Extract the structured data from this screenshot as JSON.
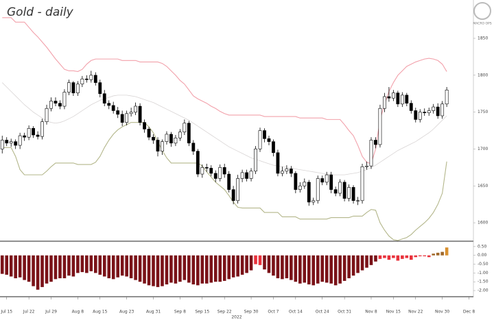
{
  "chart_data": [
    {
      "type": "candlestick",
      "title": "Gold - daily",
      "logo": "MACRO OPS",
      "xlim": [
        -0.5,
        106
      ],
      "ylim": [
        1575,
        1902
      ],
      "yticks": [
        1600,
        1650,
        1700,
        1750,
        1800,
        1850
      ],
      "xticks": [
        {
          "value": 1,
          "label": "Jul 15"
        },
        {
          "value": 6,
          "label": "Jul 22"
        },
        {
          "value": 11,
          "label": "Jul 29"
        },
        {
          "value": 17,
          "label": "Aug 8"
        },
        {
          "value": 22,
          "label": "Aug 15"
        },
        {
          "value": 28,
          "label": "Aug 23"
        },
        {
          "value": 34,
          "label": "Aug 31"
        },
        {
          "value": 40,
          "label": "Sep 8"
        },
        {
          "value": 45,
          "label": "Sep 15"
        },
        {
          "value": 50,
          "label": "Sep 22"
        },
        {
          "value": 56,
          "label": "Sep 30"
        },
        {
          "value": 61,
          "label": "Oct 7"
        },
        {
          "value": 66,
          "label": "Oct 14"
        },
        {
          "value": 72,
          "label": "Oct 24"
        },
        {
          "value": 77,
          "label": "Oct 31"
        },
        {
          "value": 83,
          "label": "Nov 8"
        },
        {
          "value": 88,
          "label": "Nov 15"
        },
        {
          "value": 93,
          "label": "Nov 22"
        },
        {
          "value": 99,
          "label": "Nov 30"
        },
        {
          "value": 105,
          "label": "Dec 8"
        }
      ],
      "year_label": "2022",
      "open": [
        1700,
        1712,
        1708,
        1710,
        1705,
        1718,
        1716,
        1728,
        1719,
        1717,
        1737,
        1755,
        1765,
        1762,
        1758,
        1777,
        1790,
        1776,
        1788,
        1795,
        1794,
        1800,
        1790,
        1775,
        1762,
        1759,
        1752,
        1747,
        1736,
        1748,
        1750,
        1758,
        1736,
        1727,
        1716,
        1712,
        1697,
        1710,
        1720,
        1708,
        1715,
        1723,
        1735,
        1708,
        1697,
        1666,
        1675,
        1674,
        1667,
        1660,
        1675,
        1666,
        1645,
        1630,
        1660,
        1668,
        1660,
        1670,
        1700,
        1725,
        1714,
        1710,
        1695,
        1667,
        1670,
        1673,
        1667,
        1645,
        1650,
        1655,
        1628,
        1630,
        1660,
        1655,
        1665,
        1645,
        1640,
        1655,
        1633,
        1648,
        1630,
        1630,
        1676,
        1677,
        1712,
        1706,
        1755,
        1771,
        1769,
        1776,
        1761,
        1773,
        1762,
        1752,
        1740,
        1750,
        1749,
        1752,
        1757,
        1745,
        1761
      ],
      "high": [
        1718,
        1716,
        1714,
        1713,
        1722,
        1722,
        1732,
        1731,
        1724,
        1741,
        1760,
        1770,
        1770,
        1766,
        1781,
        1794,
        1792,
        1792,
        1799,
        1800,
        1806,
        1804,
        1794,
        1780,
        1766,
        1764,
        1757,
        1752,
        1752,
        1756,
        1763,
        1762,
        1740,
        1730,
        1720,
        1716,
        1713,
        1724,
        1723,
        1719,
        1727,
        1740,
        1738,
        1712,
        1700,
        1679,
        1680,
        1678,
        1671,
        1679,
        1680,
        1670,
        1650,
        1665,
        1672,
        1672,
        1674,
        1704,
        1729,
        1728,
        1718,
        1713,
        1699,
        1676,
        1678,
        1677,
        1670,
        1655,
        1660,
        1658,
        1634,
        1664,
        1664,
        1669,
        1669,
        1649,
        1659,
        1658,
        1652,
        1651,
        1635,
        1680,
        1683,
        1716,
        1716,
        1760,
        1776,
        1784,
        1780,
        1779,
        1777,
        1776,
        1766,
        1756,
        1754,
        1755,
        1756,
        1761,
        1762,
        1765,
        1784
      ],
      "low": [
        1694,
        1704,
        1703,
        1700,
        1700,
        1711,
        1712,
        1715,
        1713,
        1713,
        1733,
        1751,
        1758,
        1754,
        1754,
        1773,
        1772,
        1772,
        1784,
        1790,
        1790,
        1786,
        1770,
        1758,
        1754,
        1748,
        1742,
        1731,
        1732,
        1744,
        1746,
        1732,
        1722,
        1712,
        1707,
        1690,
        1692,
        1706,
        1703,
        1704,
        1711,
        1719,
        1704,
        1692,
        1662,
        1661,
        1669,
        1663,
        1655,
        1656,
        1661,
        1641,
        1625,
        1626,
        1655,
        1656,
        1656,
        1666,
        1696,
        1709,
        1705,
        1690,
        1663,
        1663,
        1666,
        1662,
        1640,
        1641,
        1646,
        1623,
        1624,
        1626,
        1651,
        1651,
        1640,
        1636,
        1636,
        1629,
        1629,
        1626,
        1624,
        1626,
        1672,
        1673,
        1701,
        1702,
        1750,
        1764,
        1765,
        1757,
        1757,
        1758,
        1748,
        1736,
        1736,
        1745,
        1745,
        1748,
        1741,
        1741,
        1757
      ],
      "close": [
        1712,
        1708,
        1710,
        1705,
        1718,
        1716,
        1728,
        1719,
        1717,
        1737,
        1755,
        1765,
        1762,
        1758,
        1777,
        1790,
        1776,
        1788,
        1795,
        1794,
        1800,
        1790,
        1775,
        1762,
        1759,
        1752,
        1747,
        1736,
        1748,
        1750,
        1758,
        1736,
        1727,
        1716,
        1712,
        1697,
        1710,
        1720,
        1708,
        1715,
        1723,
        1735,
        1708,
        1697,
        1666,
        1675,
        1674,
        1667,
        1660,
        1675,
        1666,
        1645,
        1630,
        1660,
        1668,
        1660,
        1670,
        1700,
        1725,
        1714,
        1710,
        1695,
        1667,
        1670,
        1673,
        1667,
        1645,
        1650,
        1655,
        1628,
        1630,
        1660,
        1655,
        1665,
        1645,
        1640,
        1655,
        1633,
        1648,
        1630,
        1630,
        1676,
        1677,
        1712,
        1706,
        1755,
        1771,
        1769,
        1776,
        1761,
        1773,
        1762,
        1752,
        1740,
        1750,
        1749,
        1752,
        1757,
        1745,
        1761,
        1780
      ],
      "up_color": "#ffffff",
      "down_color": "#000000",
      "lines": [
        {
          "color": "#f2a0aa",
          "values": [
            1878,
            1878,
            1878,
            1872,
            1872,
            1872,
            1865,
            1858,
            1852,
            1845,
            1838,
            1830,
            1822,
            1815,
            1808,
            1806,
            1806,
            1805,
            1808,
            1815,
            1820,
            1822,
            1822,
            1822,
            1822,
            1822,
            1822,
            1820,
            1820,
            1820,
            1820,
            1818,
            1818,
            1818,
            1818,
            1818,
            1816,
            1812,
            1806,
            1800,
            1793,
            1788,
            1780,
            1772,
            1768,
            1765,
            1762,
            1758,
            1755,
            1751,
            1748,
            1746,
            1746,
            1746,
            1746,
            1746,
            1746,
            1746,
            1746,
            1744,
            1744,
            1744,
            1744,
            1744,
            1744,
            1744,
            1744,
            1742,
            1742,
            1742,
            1742,
            1742,
            1742,
            1740,
            1740,
            1740,
            1740,
            1733,
            1725,
            1718,
            1705,
            1690,
            1682,
            1680,
            1700,
            1740,
            1760,
            1778,
            1790,
            1800,
            1806,
            1812,
            1815,
            1818,
            1820,
            1822,
            1823,
            1822,
            1820,
            1815,
            1805
          ]
        },
        {
          "color": "#b3b68a",
          "values": [
            1702,
            1702,
            1702,
            1690,
            1672,
            1665,
            1665,
            1665,
            1665,
            1665,
            1670,
            1676,
            1681,
            1681,
            1681,
            1681,
            1681,
            1679,
            1679,
            1679,
            1679,
            1682,
            1690,
            1702,
            1712,
            1720,
            1726,
            1730,
            1733,
            1736,
            1736,
            1736,
            1736,
            1730,
            1722,
            1710,
            1698,
            1688,
            1681,
            1681,
            1681,
            1681,
            1681,
            1681,
            1681,
            1677,
            1669,
            1662,
            1655,
            1650,
            1645,
            1637,
            1628,
            1621,
            1620,
            1620,
            1620,
            1620,
            1620,
            1614,
            1614,
            1614,
            1614,
            1608,
            1608,
            1608,
            1608,
            1605,
            1605,
            1605,
            1605,
            1605,
            1605,
            1605,
            1607,
            1607,
            1607,
            1607,
            1607,
            1609,
            1609,
            1609,
            1614,
            1618,
            1617,
            1600,
            1590,
            1582,
            1577,
            1576,
            1578,
            1580,
            1584,
            1590,
            1595,
            1600,
            1606,
            1614,
            1625,
            1640,
            1683
          ]
        },
        {
          "color": "#d8d4d4",
          "values": [
            1790,
            1784,
            1778,
            1772,
            1766,
            1760,
            1755,
            1750,
            1746,
            1742,
            1738,
            1736,
            1735,
            1736,
            1738,
            1741,
            1744,
            1748,
            1752,
            1756,
            1760,
            1763,
            1766,
            1768,
            1770,
            1772,
            1773,
            1773,
            1773,
            1772,
            1771,
            1769,
            1767,
            1765,
            1763,
            1760,
            1757,
            1754,
            1751,
            1748,
            1745,
            1742,
            1739,
            1735,
            1731,
            1727,
            1723,
            1719,
            1715,
            1711,
            1707,
            1703,
            1700,
            1697,
            1694,
            1691,
            1688,
            1686,
            1684,
            1682,
            1680,
            1678,
            1677,
            1676,
            1675,
            1674,
            1673,
            1672,
            1671,
            1670,
            1669,
            1668,
            1667,
            1666,
            1665,
            1665,
            1665,
            1665,
            1666,
            1667,
            1668,
            1670,
            1672,
            1675,
            1678,
            1682,
            1686,
            1690,
            1694,
            1698,
            1701,
            1704,
            1707,
            1710,
            1714,
            1718,
            1722,
            1727,
            1733,
            1739,
            1745
          ]
        }
      ]
    },
    {
      "type": "bar",
      "xlim": [
        -0.5,
        106
      ],
      "ylim": [
        -2.31,
        0.69
      ],
      "yticks": [
        {
          "value": 0.5,
          "label": "0.50"
        },
        {
          "value": 0,
          "label": "0.00"
        },
        {
          "value": -0.5,
          "label": "-0.50"
        },
        {
          "value": -1,
          "label": "-1.00"
        },
        {
          "value": -1.5,
          "label": "-1.50"
        },
        {
          "value": -2,
          "label": "-2.00"
        }
      ],
      "values": [
        -1.05,
        -1.1,
        -1.2,
        -1.3,
        -1.25,
        -1.4,
        -1.5,
        -1.75,
        -1.95,
        -1.8,
        -1.6,
        -1.5,
        -1.35,
        -1.3,
        -1.3,
        -1.15,
        -1.2,
        -1.0,
        -0.95,
        -1.0,
        -0.9,
        -1.0,
        -1.1,
        -1.2,
        -1.3,
        -1.35,
        -1.25,
        -1.15,
        -1.2,
        -1.3,
        -1.4,
        -1.5,
        -1.6,
        -1.7,
        -1.75,
        -1.8,
        -1.75,
        -1.65,
        -1.55,
        -1.6,
        -1.5,
        -1.4,
        -1.55,
        -1.65,
        -1.7,
        -1.6,
        -1.6,
        -1.55,
        -1.5,
        -1.5,
        -1.45,
        -1.35,
        -1.25,
        -1.2,
        -1.1,
        -1.0,
        -0.85,
        -0.5,
        -0.55,
        -0.8,
        -1.0,
        -1.15,
        -1.3,
        -1.35,
        -1.3,
        -1.4,
        -1.5,
        -1.6,
        -1.55,
        -1.65,
        -1.7,
        -1.6,
        -1.5,
        -1.55,
        -1.6,
        -1.7,
        -1.6,
        -1.45,
        -1.3,
        -1.15,
        -1.0,
        -0.85,
        -0.7,
        -0.55,
        -0.35,
        -0.2,
        -0.15,
        -0.25,
        -0.15,
        -0.3,
        -0.2,
        -0.15,
        -0.25,
        -0.1,
        -0.05,
        -0.05,
        -0.1,
        0.1,
        0.15,
        0.2,
        0.45
      ],
      "colors": [
        "#7a1218",
        "#7a1218",
        "#7a1218",
        "#7a1218",
        "#7a1218",
        "#7a1218",
        "#7a1218",
        "#7a1218",
        "#7a1218",
        "#7a1218",
        "#7a1218",
        "#7a1218",
        "#7a1218",
        "#7a1218",
        "#7a1218",
        "#7a1218",
        "#7a1218",
        "#7a1218",
        "#7a1218",
        "#7a1218",
        "#7a1218",
        "#7a1218",
        "#7a1218",
        "#7a1218",
        "#7a1218",
        "#7a1218",
        "#7a1218",
        "#7a1218",
        "#7a1218",
        "#7a1218",
        "#7a1218",
        "#7a1218",
        "#7a1218",
        "#7a1218",
        "#7a1218",
        "#7a1218",
        "#7a1218",
        "#7a1218",
        "#7a1218",
        "#7a1218",
        "#7a1218",
        "#7a1218",
        "#7a1218",
        "#7a1218",
        "#7a1218",
        "#7a1218",
        "#7a1218",
        "#7a1218",
        "#7a1218",
        "#7a1218",
        "#7a1218",
        "#7a1218",
        "#7a1218",
        "#7a1218",
        "#7a1218",
        "#7a1218",
        "#7a1218",
        "#e8323c",
        "#e8323c",
        "#7a1218",
        "#7a1218",
        "#7a1218",
        "#7a1218",
        "#7a1218",
        "#7a1218",
        "#7a1218",
        "#7a1218",
        "#7a1218",
        "#7a1218",
        "#7a1218",
        "#7a1218",
        "#7a1218",
        "#7a1218",
        "#7a1218",
        "#7a1218",
        "#7a1218",
        "#7a1218",
        "#7a1218",
        "#7a1218",
        "#7a1218",
        "#7a1218",
        "#7a1218",
        "#7a1218",
        "#7a1218",
        "#7a1218",
        "#e8323c",
        "#e8323c",
        "#e8323c",
        "#e8323c",
        "#e8323c",
        "#e8323c",
        "#e8323c",
        "#e8323c",
        "#e8323c",
        "#e8323c",
        "#e8323c",
        "#e8323c",
        "#a0682a",
        "#a0682a",
        "#a0682a",
        "#d89030"
      ]
    }
  ]
}
